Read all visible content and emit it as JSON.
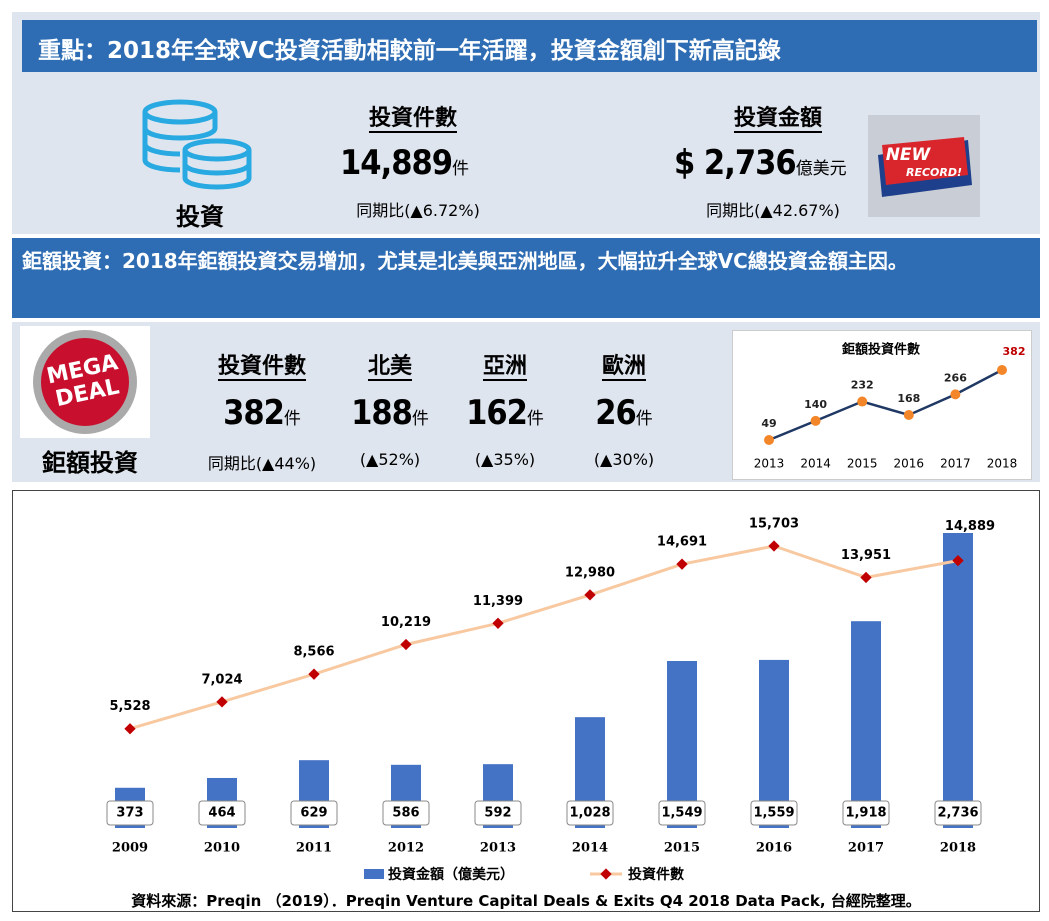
{
  "header": {
    "title": "重點：2018年全球VC投資活動相較前一年活躍，投資金額創下新高記錄"
  },
  "summary": {
    "icon_label": "投資",
    "deals": {
      "label": "投資件數",
      "value": "14,889",
      "unit": "件",
      "yoy": "同期比(▲6.72%)"
    },
    "amount": {
      "label": "投資金額",
      "value": "$ 2,736",
      "unit": "億美元",
      "yoy": "同期比(▲42.67%)"
    },
    "badge": [
      "NEW",
      "RECORD!"
    ]
  },
  "mega": {
    "title": "鉅額投資：2018年鉅額投資交易增加，尤其是北美與亞洲地區，大幅拉升全球VC總投資金額主因。",
    "badge": [
      "MEGA",
      "DEAL"
    ],
    "icon_label": "鉅額投資",
    "columns": [
      {
        "label": "投資件數",
        "value": "382",
        "unit": "件",
        "yoy": "同期比(▲44%)"
      },
      {
        "label": "北美",
        "value": "188",
        "unit": "件",
        "yoy": "(▲52%)"
      },
      {
        "label": "亞洲",
        "value": "162",
        "unit": "件",
        "yoy": "(▲35%)"
      },
      {
        "label": "歐洲",
        "value": "26",
        "unit": "件",
        "yoy": "(▲30%)"
      }
    ]
  },
  "chart_data": [
    {
      "type": "line",
      "title": "鉅額投資件數",
      "categories": [
        "2013",
        "2014",
        "2015",
        "2016",
        "2017",
        "2018"
      ],
      "series": [
        {
          "name": "鉅額投資件數",
          "color": "#1f3864",
          "marker_color": "#f4862a",
          "values": [
            49,
            140,
            232,
            168,
            266,
            382
          ]
        }
      ],
      "highlight_color": "#c00000"
    },
    {
      "type": "combo",
      "categories": [
        "2009",
        "2010",
        "2011",
        "2012",
        "2013",
        "2014",
        "2015",
        "2016",
        "2017",
        "2018"
      ],
      "series": [
        {
          "name": "投資金額（億美元）",
          "type": "bar",
          "color": "#4472c4",
          "values": [
            373,
            464,
            629,
            586,
            592,
            1028,
            1549,
            1559,
            1918,
            2736
          ],
          "value_labels": [
            "373",
            "464",
            "629",
            "586",
            "592",
            "1,028",
            "1,549",
            "1,559",
            "1,918",
            "2,736"
          ]
        },
        {
          "name": "投資件數",
          "type": "line",
          "axis": "y2",
          "color": "#f8c9a0",
          "marker_color": "#c00000",
          "values": [
            5528,
            7024,
            8566,
            10219,
            11399,
            12980,
            14691,
            15703,
            13951,
            14889
          ],
          "value_labels": [
            "5,528",
            "7,024",
            "8,566",
            "10,219",
            "11,399",
            "12,980",
            "14,691",
            "15,703",
            "13,951",
            "14,889"
          ]
        }
      ]
    }
  ],
  "source": "資料來源：Preqin （2019）．Preqin Venture Capital Deals & Exits Q4 2018 Data Pack, 台經院整理。"
}
